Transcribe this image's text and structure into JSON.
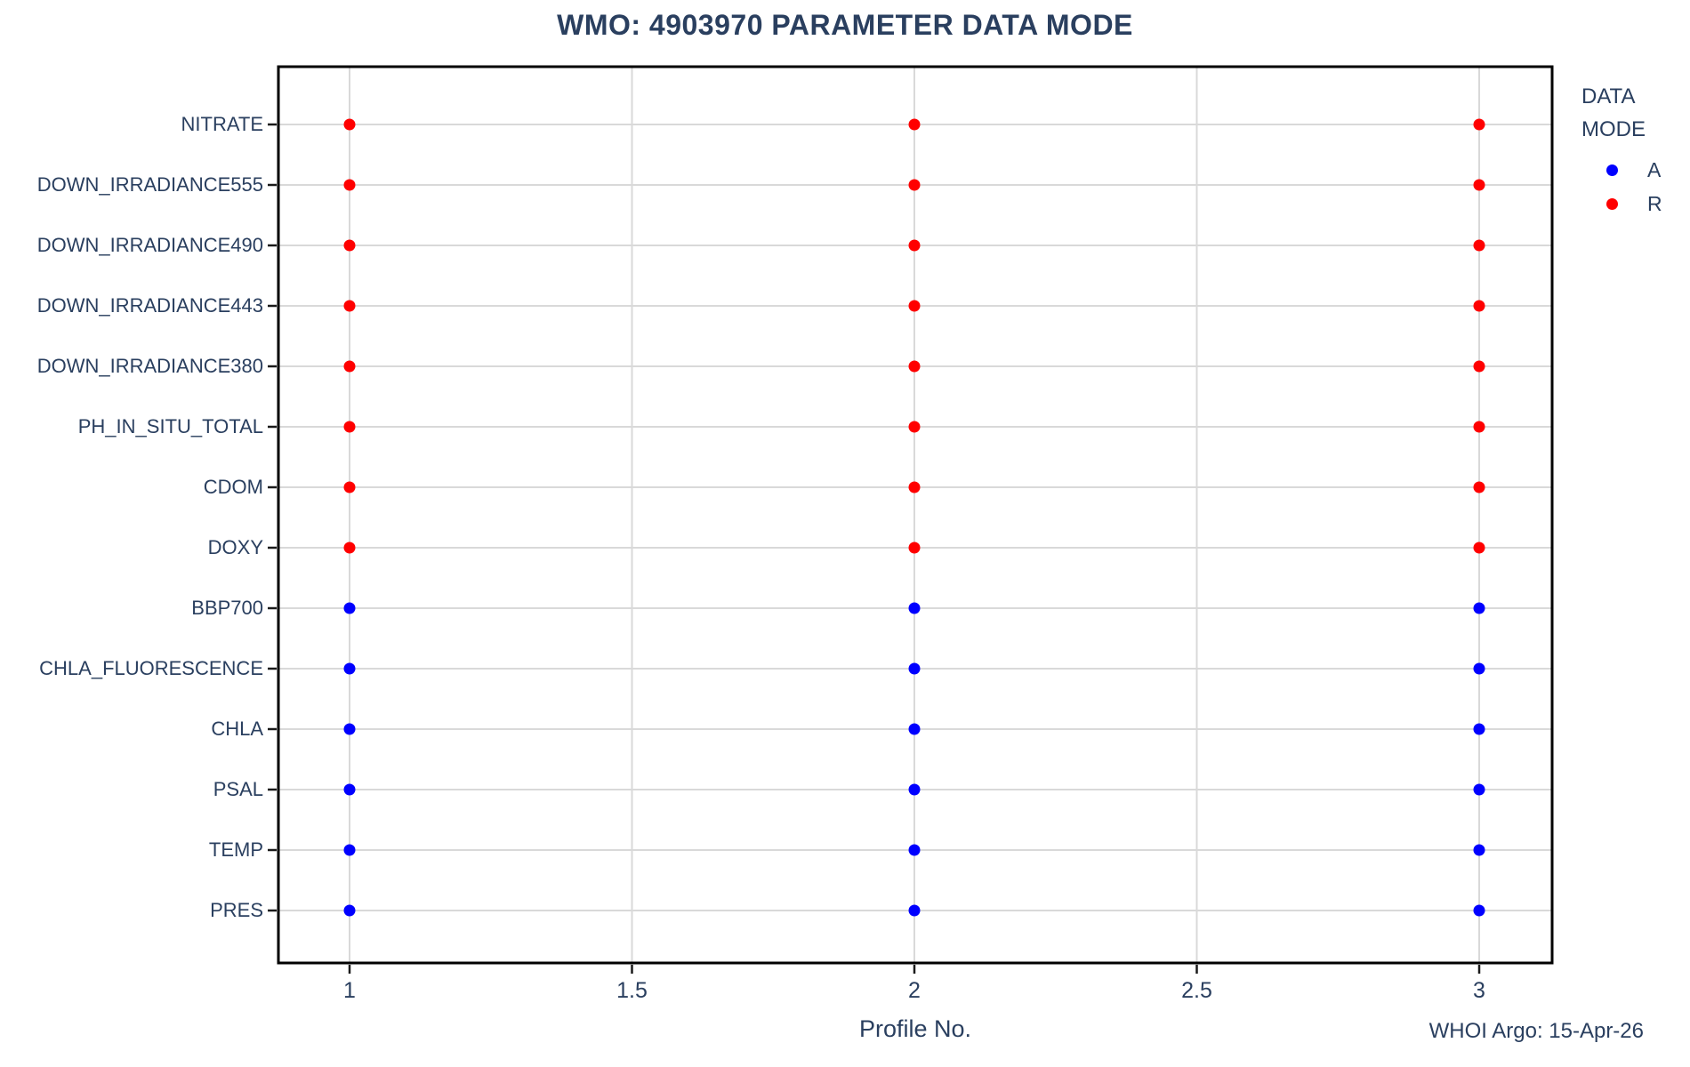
{
  "chart_data": {
    "type": "scatter",
    "title": "WMO: 4903970 PARAMETER DATA MODE",
    "xlabel": "Profile No.",
    "x_ticks": [
      {
        "value": 1,
        "label": "1"
      },
      {
        "value": 1.5,
        "label": "1.5"
      },
      {
        "value": 2,
        "label": "2"
      },
      {
        "value": 2.5,
        "label": "2.5"
      },
      {
        "value": 3,
        "label": "3"
      }
    ],
    "x_range": [
      0.87,
      3.13
    ],
    "profiles": [
      1,
      2,
      3
    ],
    "grid": true,
    "legend_position": "right-top",
    "mode_colors": {
      "A": "#0000ff",
      "R": "#ff0000"
    },
    "rows": [
      {
        "parameter": "NITRATE",
        "mode": "R"
      },
      {
        "parameter": "DOWN_IRRADIANCE555",
        "mode": "R"
      },
      {
        "parameter": "DOWN_IRRADIANCE490",
        "mode": "R"
      },
      {
        "parameter": "DOWN_IRRADIANCE443",
        "mode": "R"
      },
      {
        "parameter": "DOWN_IRRADIANCE380",
        "mode": "R"
      },
      {
        "parameter": "PH_IN_SITU_TOTAL",
        "mode": "R"
      },
      {
        "parameter": "CDOM",
        "mode": "R"
      },
      {
        "parameter": "DOXY",
        "mode": "R"
      },
      {
        "parameter": "BBP700",
        "mode": "A"
      },
      {
        "parameter": "CHLA_FLUORESCENCE",
        "mode": "A"
      },
      {
        "parameter": "CHLA",
        "mode": "A"
      },
      {
        "parameter": "PSAL",
        "mode": "A"
      },
      {
        "parameter": "TEMP",
        "mode": "A"
      },
      {
        "parameter": "PRES",
        "mode": "A"
      }
    ],
    "legend": {
      "title_lines": [
        "DATA",
        "MODE"
      ],
      "items": [
        {
          "label": "A",
          "color": "#0000ff"
        },
        {
          "label": "R",
          "color": "#ff0000"
        }
      ]
    },
    "colors": {
      "text": "#2a3f5f",
      "gridline": "#d9d9d9",
      "axis_border": "#000000",
      "tick": "#1a1a1a",
      "background": "#ffffff"
    }
  },
  "footer": {
    "credit": "WHOI Argo: 15-Apr-26"
  }
}
